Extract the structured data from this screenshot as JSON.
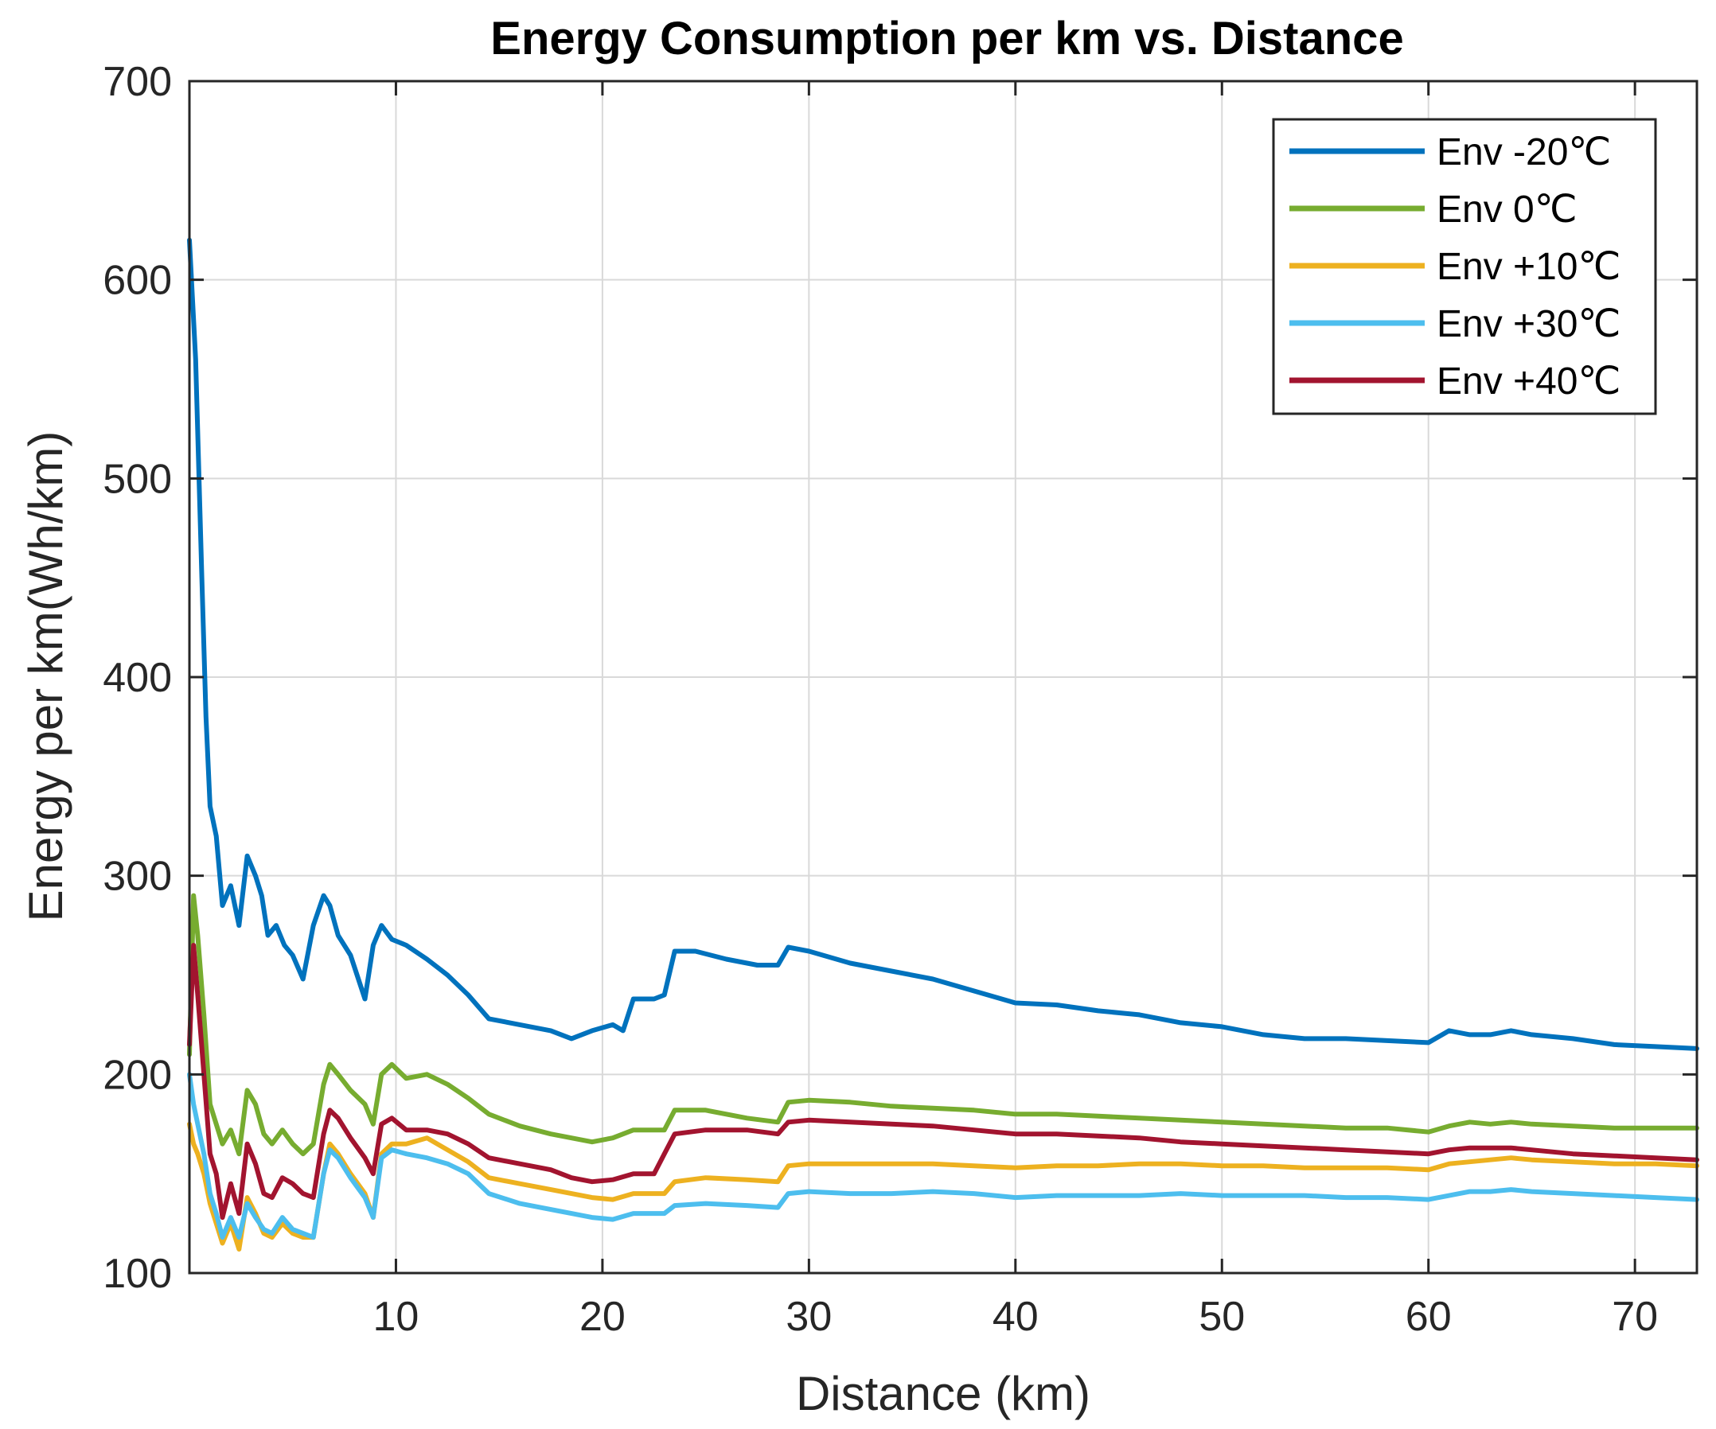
{
  "chart_data": {
    "type": "line",
    "title": "Energy Consumption per km vs. Distance",
    "xlabel": "Distance (km)",
    "ylabel": "Energy per km(Wh/km)",
    "xlim": [
      0,
      73
    ],
    "ylim": [
      100,
      700
    ],
    "xticks": [
      10,
      20,
      30,
      40,
      50,
      60,
      70
    ],
    "yticks": [
      100,
      200,
      300,
      400,
      500,
      600,
      700
    ],
    "grid": true,
    "legend_position": "top-right",
    "series": [
      {
        "name": "Env  -20℃",
        "color": "#0072BD",
        "x": [
          0,
          0.3,
          0.6,
          0.8,
          1.0,
          1.3,
          1.6,
          2.0,
          2.4,
          2.8,
          3.2,
          3.5,
          3.8,
          4.2,
          4.6,
          5.0,
          5.5,
          6.0,
          6.5,
          6.8,
          7.2,
          7.8,
          8.5,
          8.9,
          9.3,
          9.8,
          10.5,
          11.5,
          12.5,
          13.5,
          14.5,
          16,
          17.5,
          18.5,
          19.5,
          20.5,
          21,
          21.5,
          22.5,
          23,
          23.5,
          24.5,
          26,
          27.5,
          28.5,
          29,
          30,
          32,
          34,
          36,
          38,
          40,
          42,
          44,
          46,
          48,
          50,
          52,
          54,
          56,
          58,
          60,
          61,
          62,
          63,
          64,
          65,
          67,
          69,
          71,
          73
        ],
        "values": [
          620,
          560,
          450,
          380,
          335,
          320,
          285,
          295,
          275,
          310,
          300,
          290,
          270,
          275,
          265,
          260,
          248,
          275,
          290,
          285,
          270,
          260,
          238,
          265,
          275,
          268,
          265,
          258,
          250,
          240,
          228,
          225,
          222,
          218,
          222,
          225,
          222,
          238,
          238,
          240,
          262,
          262,
          258,
          255,
          255,
          264,
          262,
          256,
          252,
          248,
          242,
          236,
          235,
          232,
          230,
          226,
          224,
          220,
          218,
          218,
          217,
          216,
          222,
          220,
          220,
          222,
          220,
          218,
          215,
          214,
          213
        ]
      },
      {
        "name": "Env   0℃",
        "color": "#77AC30",
        "x": [
          0,
          0.2,
          0.4,
          0.7,
          1.0,
          1.3,
          1.6,
          2.0,
          2.4,
          2.8,
          3.2,
          3.6,
          4.0,
          4.5,
          5.0,
          5.5,
          6.0,
          6.5,
          6.8,
          7.2,
          7.8,
          8.5,
          8.9,
          9.3,
          9.8,
          10.5,
          11.5,
          12.5,
          13.5,
          14.5,
          16,
          17.5,
          18.5,
          19.5,
          20.5,
          21.5,
          22.5,
          23,
          23.5,
          25,
          27,
          28.5,
          29,
          30,
          32,
          34,
          36,
          38,
          40,
          42,
          44,
          46,
          48,
          50,
          52,
          54,
          56,
          58,
          60,
          61,
          62,
          63,
          64,
          65,
          67,
          69,
          71,
          73
        ],
        "values": [
          210,
          290,
          270,
          230,
          185,
          175,
          165,
          172,
          160,
          192,
          185,
          170,
          165,
          172,
          165,
          160,
          165,
          195,
          205,
          200,
          192,
          185,
          175,
          200,
          205,
          198,
          200,
          195,
          188,
          180,
          174,
          170,
          168,
          166,
          168,
          172,
          172,
          172,
          182,
          182,
          178,
          176,
          186,
          187,
          186,
          184,
          183,
          182,
          180,
          180,
          179,
          178,
          177,
          176,
          175,
          174,
          173,
          173,
          171,
          174,
          176,
          175,
          176,
          175,
          174,
          173,
          173,
          173
        ]
      },
      {
        "name": "Env +10℃",
        "color": "#EDB120",
        "x": [
          0,
          0.2,
          0.4,
          0.7,
          1.0,
          1.3,
          1.6,
          2.0,
          2.4,
          2.8,
          3.2,
          3.6,
          4.0,
          4.5,
          5.0,
          5.5,
          6.0,
          6.5,
          6.8,
          7.2,
          7.8,
          8.5,
          8.9,
          9.3,
          9.8,
          10.5,
          11.5,
          12.5,
          13.5,
          14.5,
          16,
          17.5,
          18.5,
          19.5,
          20.5,
          21.5,
          22.5,
          23,
          23.5,
          25,
          27,
          28.5,
          29,
          30,
          32,
          34,
          36,
          38,
          40,
          42,
          44,
          46,
          48,
          50,
          52,
          54,
          56,
          58,
          60,
          61,
          62,
          63,
          64,
          65,
          67,
          69,
          71,
          73
        ],
        "values": [
          175,
          165,
          160,
          150,
          135,
          125,
          115,
          125,
          112,
          138,
          130,
          120,
          118,
          125,
          120,
          118,
          118,
          150,
          165,
          160,
          150,
          140,
          128,
          160,
          165,
          165,
          168,
          162,
          156,
          148,
          145,
          142,
          140,
          138,
          137,
          140,
          140,
          140,
          146,
          148,
          147,
          146,
          154,
          155,
          155,
          155,
          155,
          154,
          153,
          154,
          154,
          155,
          155,
          154,
          154,
          153,
          153,
          153,
          152,
          155,
          156,
          157,
          158,
          157,
          156,
          155,
          155,
          154
        ]
      },
      {
        "name": "Env  +30℃",
        "color": "#4DBEEE",
        "x": [
          0,
          0.2,
          0.4,
          0.7,
          1.0,
          1.3,
          1.6,
          2.0,
          2.4,
          2.8,
          3.2,
          3.6,
          4.0,
          4.5,
          5.0,
          5.5,
          6.0,
          6.5,
          6.8,
          7.2,
          7.8,
          8.5,
          8.9,
          9.3,
          9.8,
          10.5,
          11.5,
          12.5,
          13.5,
          14.5,
          16,
          17.5,
          18.5,
          19.5,
          20.5,
          21.5,
          22.5,
          23,
          23.5,
          25,
          27,
          28.5,
          29,
          30,
          32,
          34,
          36,
          38,
          40,
          42,
          44,
          46,
          48,
          50,
          52,
          54,
          56,
          58,
          60,
          61,
          62,
          63,
          64,
          65,
          67,
          69,
          71,
          73
        ],
        "values": [
          200,
          185,
          175,
          160,
          140,
          130,
          118,
          128,
          118,
          135,
          128,
          122,
          120,
          128,
          122,
          120,
          118,
          150,
          162,
          158,
          148,
          138,
          128,
          158,
          162,
          160,
          158,
          155,
          150,
          140,
          135,
          132,
          130,
          128,
          127,
          130,
          130,
          130,
          134,
          135,
          134,
          133,
          140,
          141,
          140,
          140,
          141,
          140,
          138,
          139,
          139,
          139,
          140,
          139,
          139,
          139,
          138,
          138,
          137,
          139,
          141,
          141,
          142,
          141,
          140,
          139,
          138,
          137
        ]
      },
      {
        "name": "Env  +40℃",
        "color": "#A2142F",
        "x": [
          0,
          0.2,
          0.4,
          0.7,
          1.0,
          1.3,
          1.6,
          2.0,
          2.4,
          2.8,
          3.2,
          3.6,
          4.0,
          4.5,
          5.0,
          5.5,
          6.0,
          6.5,
          6.8,
          7.2,
          7.8,
          8.5,
          8.9,
          9.3,
          9.8,
          10.5,
          11.5,
          12.5,
          13.5,
          14.5,
          16,
          17.5,
          18.5,
          19.5,
          20.5,
          21.5,
          22.5,
          23,
          23.5,
          25,
          27,
          28.5,
          29,
          30,
          32,
          34,
          36,
          38,
          40,
          42,
          44,
          46,
          48,
          50,
          52,
          54,
          56,
          58,
          60,
          61,
          62,
          63,
          64,
          65,
          67,
          69,
          71,
          73
        ],
        "values": [
          215,
          265,
          240,
          200,
          160,
          150,
          128,
          145,
          130,
          165,
          155,
          140,
          138,
          148,
          145,
          140,
          138,
          170,
          182,
          178,
          168,
          158,
          150,
          175,
          178,
          172,
          172,
          170,
          165,
          158,
          155,
          152,
          148,
          146,
          147,
          150,
          150,
          160,
          170,
          172,
          172,
          170,
          176,
          177,
          176,
          175,
          174,
          172,
          170,
          170,
          169,
          168,
          166,
          165,
          164,
          163,
          162,
          161,
          160,
          162,
          163,
          163,
          163,
          162,
          160,
          159,
          158,
          157
        ]
      }
    ]
  }
}
